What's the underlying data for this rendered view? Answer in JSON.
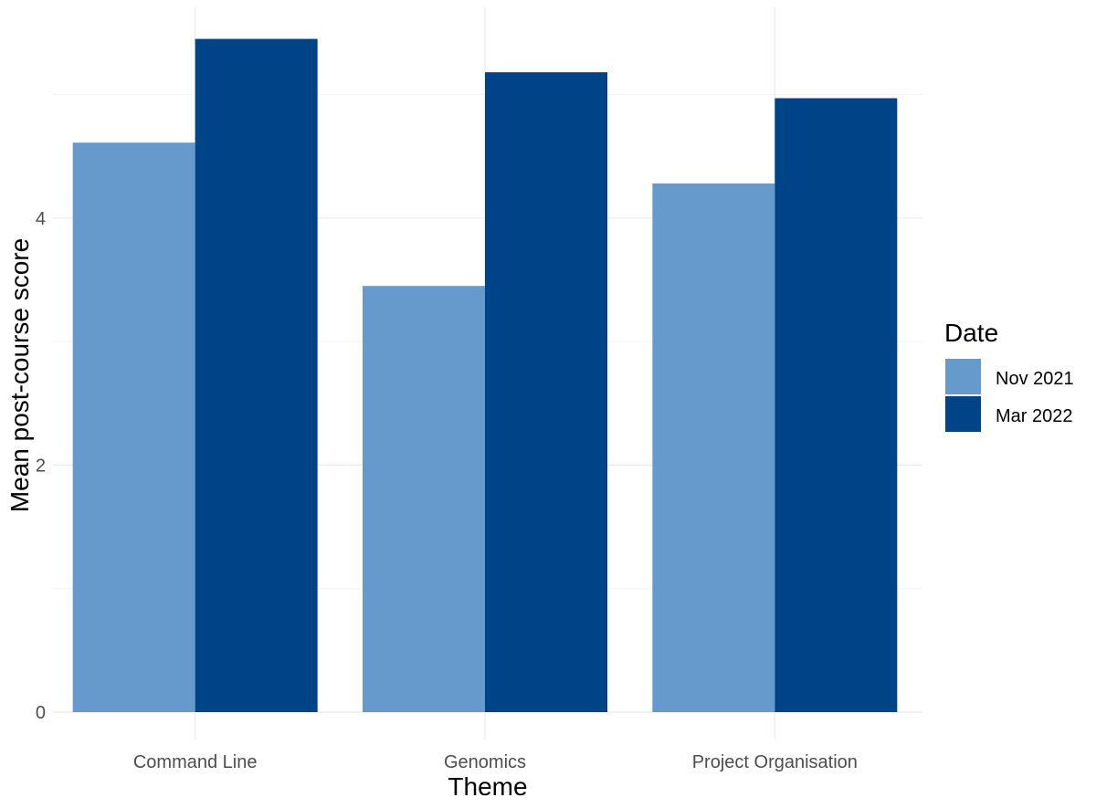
{
  "chart_data": {
    "type": "bar",
    "xlabel": "Theme",
    "ylabel": "Mean post-course score",
    "categories": [
      "Command Line",
      "Genomics",
      "Project Organisation"
    ],
    "series": [
      {
        "name": "Nov 2021",
        "color": "#6699cc",
        "values": [
          4.61,
          3.45,
          4.28
        ]
      },
      {
        "name": "Mar 2022",
        "color": "#004488",
        "values": [
          5.45,
          5.18,
          4.97
        ]
      }
    ],
    "ylim": [
      0,
      5.7
    ],
    "yticks": [
      0,
      2,
      4
    ],
    "grid": true,
    "legend": {
      "title": "Date",
      "position": "right"
    }
  }
}
